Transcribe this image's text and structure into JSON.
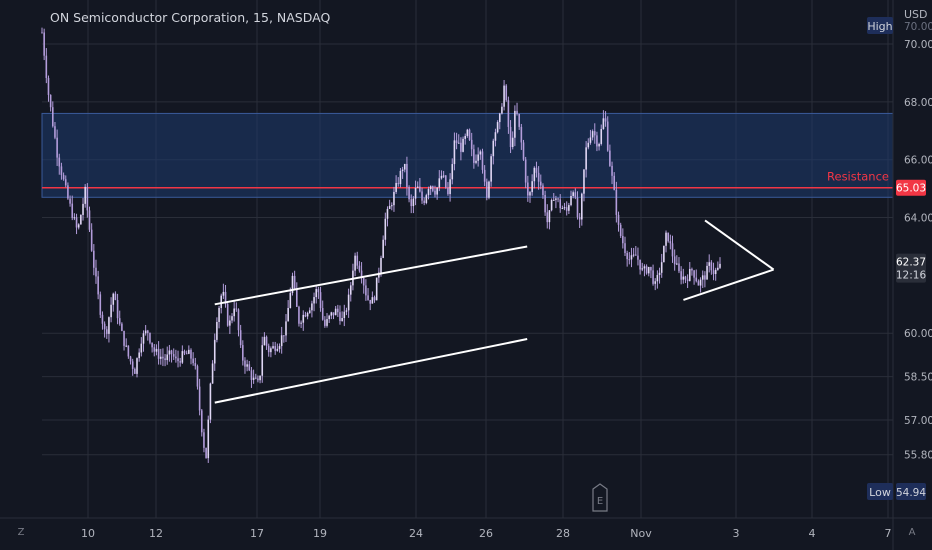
{
  "header": {
    "title": "ON Semiconductor Corporation, 15, NASDAQ",
    "currency": "USD"
  },
  "colors": {
    "background": "#131722",
    "grid": "#2a2e39",
    "candle": "#b39ddb",
    "zone_fill": "#1e3a6e",
    "resistance": "#f23645",
    "pattern_lines": "#ffffff",
    "axis_text": "#b2b5be"
  },
  "bottom_bar": {
    "left_icon": "Z",
    "right_icon": "A"
  },
  "earnings_marker": "E",
  "chart_data": {
    "type": "candlestick",
    "title": "ON Semiconductor Corporation, 15, NASDAQ",
    "x_ticks": [
      "10",
      "12",
      "17",
      "19",
      "24",
      "26",
      "28",
      "Nov",
      "3",
      "4",
      "7"
    ],
    "y_ticks": [
      55.8,
      57.0,
      58.5,
      60.0,
      64.0,
      66.0,
      68.0,
      70.0
    ],
    "y_tick_labels": [
      "55.80",
      "57.00",
      "58.50",
      "60.00",
      "64.00",
      "66.00",
      "68.00",
      "70.00"
    ],
    "ylim": [
      54.6,
      71.0
    ],
    "grid": true,
    "price_path": [
      [
        0.0,
        70.4
      ],
      [
        0.5,
        68.3
      ],
      [
        1.2,
        66.2
      ],
      [
        2.0,
        64.7
      ],
      [
        2.8,
        63.5
      ],
      [
        3.4,
        64.9
      ],
      [
        4.0,
        62.6
      ],
      [
        4.5,
        61.0
      ],
      [
        5.0,
        59.9
      ],
      [
        5.6,
        61.4
      ],
      [
        6.2,
        60.1
      ],
      [
        6.8,
        59.2
      ],
      [
        7.3,
        58.7
      ],
      [
        7.8,
        59.8
      ],
      [
        8.3,
        60.1
      ],
      [
        8.8,
        59.4
      ],
      [
        9.3,
        59.2
      ],
      [
        9.7,
        59.1
      ],
      [
        10.2,
        59.3
      ],
      [
        10.6,
        59.0
      ],
      [
        11.0,
        59.2
      ],
      [
        11.5,
        59.3
      ],
      [
        12.0,
        59.0
      ],
      [
        12.5,
        57.0
      ],
      [
        12.9,
        55.6
      ],
      [
        13.3,
        58.4
      ],
      [
        13.7,
        60.4
      ],
      [
        14.2,
        61.5
      ],
      [
        14.7,
        60.2
      ],
      [
        15.2,
        61.1
      ],
      [
        15.7,
        59.2
      ],
      [
        16.2,
        58.8
      ],
      [
        16.6,
        58.4
      ],
      [
        17.1,
        58.2
      ],
      [
        17.4,
        60.0
      ],
      [
        17.8,
        59.4
      ],
      [
        18.2,
        59.5
      ],
      [
        18.7,
        59.7
      ],
      [
        19.2,
        60.2
      ],
      [
        19.7,
        62.0
      ],
      [
        20.2,
        60.4
      ],
      [
        20.7,
        60.7
      ],
      [
        21.2,
        61.0
      ],
      [
        21.7,
        61.6
      ],
      [
        22.2,
        60.2
      ],
      [
        22.7,
        60.6
      ],
      [
        23.2,
        60.8
      ],
      [
        23.7,
        60.4
      ],
      [
        24.2,
        61.3
      ],
      [
        24.6,
        62.7
      ],
      [
        25.1,
        62.2
      ],
      [
        25.6,
        61.2
      ],
      [
        26.1,
        61.1
      ],
      [
        26.6,
        62.4
      ],
      [
        27.0,
        63.9
      ],
      [
        27.5,
        64.5
      ],
      [
        28.0,
        65.2
      ],
      [
        28.5,
        65.9
      ],
      [
        29.0,
        64.2
      ],
      [
        29.5,
        65.1
      ],
      [
        30.0,
        64.5
      ],
      [
        30.5,
        65.2
      ],
      [
        31.0,
        64.9
      ],
      [
        31.5,
        65.5
      ],
      [
        32.0,
        64.7
      ],
      [
        32.5,
        66.7
      ],
      [
        33.0,
        66.4
      ],
      [
        33.5,
        66.9
      ],
      [
        34.0,
        65.9
      ],
      [
        34.5,
        66.5
      ],
      [
        35.0,
        64.5
      ],
      [
        35.5,
        66.8
      ],
      [
        36.0,
        67.3
      ],
      [
        36.4,
        68.6
      ],
      [
        36.9,
        66.3
      ],
      [
        37.3,
        67.8
      ],
      [
        37.8,
        66.4
      ],
      [
        38.3,
        64.5
      ],
      [
        38.8,
        65.8
      ],
      [
        39.3,
        65.1
      ],
      [
        39.8,
        63.8
      ],
      [
        40.3,
        64.8
      ],
      [
        40.8,
        64.4
      ],
      [
        41.3,
        64.2
      ],
      [
        41.8,
        65.1
      ],
      [
        42.3,
        63.6
      ],
      [
        42.8,
        66.3
      ],
      [
        43.3,
        67.1
      ],
      [
        43.8,
        66.5
      ],
      [
        44.3,
        67.6
      ],
      [
        44.6,
        66.2
      ],
      [
        45.0,
        65.0
      ],
      [
        45.4,
        63.6
      ],
      [
        45.9,
        62.9
      ],
      [
        46.3,
        62.5
      ],
      [
        46.8,
        62.7
      ],
      [
        47.3,
        62.1
      ],
      [
        47.8,
        62.3
      ],
      [
        48.3,
        61.6
      ],
      [
        48.8,
        62.5
      ],
      [
        49.2,
        63.5
      ],
      [
        49.7,
        62.6
      ],
      [
        50.2,
        62.0
      ],
      [
        50.7,
        61.9
      ],
      [
        51.2,
        62.2
      ],
      [
        51.7,
        61.7
      ],
      [
        52.2,
        62.0
      ],
      [
        52.6,
        62.4
      ],
      [
        52.9,
        62.1
      ],
      [
        53.2,
        62.2
      ],
      [
        53.5,
        62.37
      ]
    ],
    "high": {
      "label": "High",
      "value": "70.00"
    },
    "low": {
      "label": "Low",
      "value": "54.94"
    },
    "last_price": {
      "value": "62.37",
      "countdown": "12:16"
    },
    "resistance": {
      "label": "Resistance",
      "value": 65.03,
      "value_label": "65.03"
    },
    "resistance_zone": {
      "from": 64.7,
      "to": 67.6
    },
    "channel": {
      "upper": [
        [
          13.6,
          61.0
        ],
        [
          38.2,
          63.0
        ]
      ],
      "lower": [
        [
          13.6,
          57.6
        ],
        [
          38.2,
          59.8
        ]
      ]
    },
    "triangle": {
      "upper": [
        [
          52.2,
          63.9
        ],
        [
          57.6,
          62.2
        ]
      ],
      "lower": [
        [
          50.5,
          61.15
        ],
        [
          57.6,
          62.2
        ]
      ]
    }
  }
}
